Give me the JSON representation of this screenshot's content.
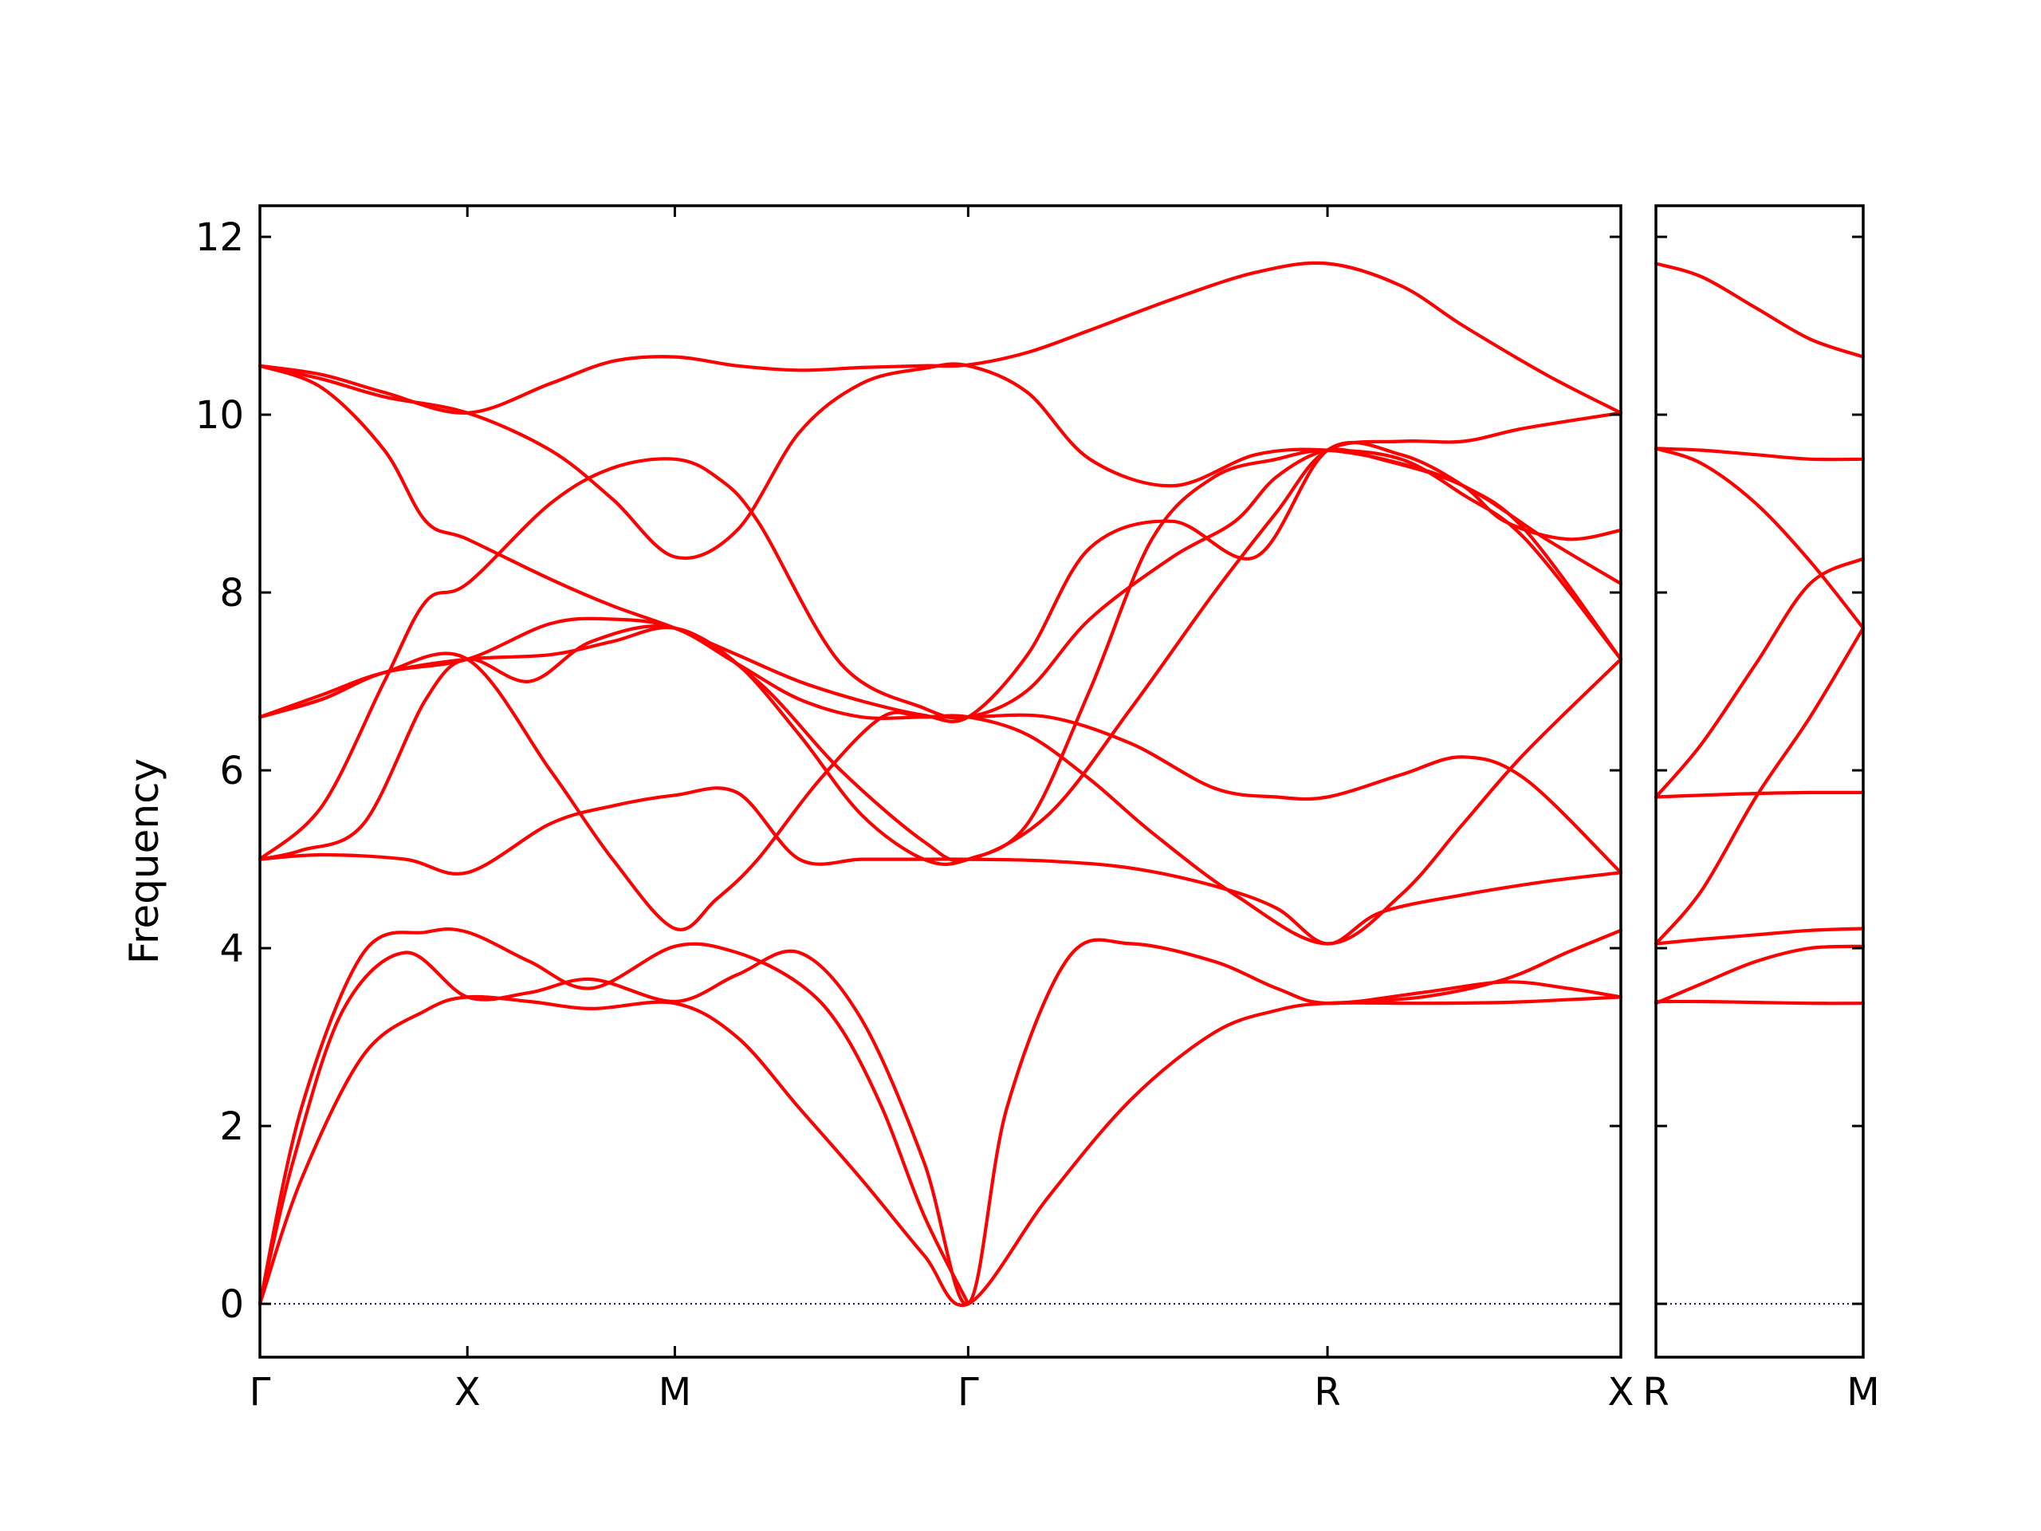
{
  "chart_data": {
    "type": "line",
    "title": "",
    "ylabel": "Frequency",
    "ylim": [
      -0.6,
      12.35
    ],
    "yticks": [
      0,
      2,
      4,
      6,
      8,
      10,
      12
    ],
    "colors": {
      "bands": "#ff0000",
      "zero_line": "#00008b",
      "axes": "#000000"
    },
    "segments": [
      {
        "label": "Γ",
        "x": 0.0
      },
      {
        "label": "X",
        "x": 0.5
      },
      {
        "label": "M",
        "x": 1.0
      },
      {
        "label": "Γ",
        "x": 1.707
      },
      {
        "label": "R",
        "x": 2.573
      },
      {
        "label": "X",
        "x": 3.28
      }
    ],
    "panels": [
      {
        "x_range": [
          0,
          3.28
        ],
        "xtick_positions": [
          0,
          0.5,
          1.0,
          1.707,
          2.573,
          3.28
        ],
        "xtick_labels": [
          "Γ",
          "X",
          "M",
          "Γ",
          "R",
          "X"
        ],
        "bands": [
          {
            "x": [
              0,
              0.1,
              0.25,
              0.4,
              0.5,
              0.65,
              0.8,
              1.0,
              1.15,
              1.3,
              1.45,
              1.6,
              1.707,
              1.9,
              2.1,
              2.3,
              2.45,
              2.573,
              2.8,
              3.0,
              3.15,
              3.28
            ],
            "y": [
              0,
              1.4,
              2.8,
              3.3,
              3.45,
              3.4,
              3.32,
              3.38,
              3.0,
              2.2,
              1.4,
              0.55,
              0,
              1.2,
              2.3,
              3.05,
              3.3,
              3.38,
              3.38,
              3.39,
              3.42,
              3.45
            ]
          },
          {
            "x": [
              0,
              0.08,
              0.2,
              0.35,
              0.5,
              0.65,
              0.8,
              1.0,
              1.15,
              1.3,
              1.45,
              1.6,
              1.707,
              1.8,
              1.95,
              2.1,
              2.3,
              2.45,
              2.573,
              2.8,
              3.0,
              3.15,
              3.28
            ],
            "y": [
              0,
              1.6,
              3.3,
              3.95,
              3.45,
              3.5,
              3.65,
              3.4,
              3.7,
              3.95,
              3.2,
              1.6,
              0,
              2.2,
              3.9,
              4.05,
              3.85,
              3.55,
              3.38,
              3.5,
              3.62,
              3.55,
              3.45
            ]
          },
          {
            "x": [
              0,
              0.1,
              0.25,
              0.4,
              0.5,
              0.65,
              0.8,
              1.0,
              1.15,
              1.3,
              1.4,
              1.5,
              1.6,
              1.707
            ],
            "y": [
              0,
              2.2,
              3.95,
              4.18,
              4.18,
              3.85,
              3.55,
              4.02,
              3.95,
              3.6,
              3.1,
              2.2,
              1.0,
              0
            ]
          },
          {
            "x": [
              2.573,
              2.8,
              3.0,
              3.15,
              3.28
            ],
            "y": [
              3.38,
              3.45,
              3.65,
              3.95,
              4.2
            ]
          },
          {
            "x": [
              0,
              0.15,
              0.35,
              0.5,
              0.7,
              0.85,
              1.0,
              1.15,
              1.3,
              1.45,
              1.6,
              1.707,
              1.9,
              2.1,
              2.3,
              2.45,
              2.573,
              2.7,
              2.9,
              3.1,
              3.28
            ],
            "y": [
              5.0,
              5.05,
              5.0,
              4.85,
              5.4,
              5.6,
              5.72,
              5.75,
              5.0,
              5.0,
              5.0,
              5.0,
              4.98,
              4.9,
              4.7,
              4.45,
              4.05,
              4.4,
              4.6,
              4.75,
              4.85
            ]
          },
          {
            "x": [
              0,
              0.15,
              0.3,
              0.4,
              0.5,
              0.7,
              0.85,
              1.0,
              1.1,
              1.2,
              1.4,
              1.6,
              1.707,
              1.85,
              2.0,
              2.2,
              2.35,
              2.45,
              2.573,
              2.7,
              2.9,
              3.1,
              3.28
            ],
            "y": [
              5.0,
              5.6,
              7.0,
              7.9,
              8.1,
              9.0,
              9.4,
              9.5,
              9.3,
              8.8,
              7.2,
              6.7,
              6.6,
              6.9,
              7.7,
              8.4,
              8.8,
              9.3,
              9.6,
              9.5,
              9.2,
              8.6,
              8.1
            ]
          },
          {
            "x": [
              0,
              0.15,
              0.3,
              0.5,
              0.7,
              0.85,
              1.0,
              1.1,
              1.2,
              1.35,
              1.5,
              1.6,
              1.707,
              1.85,
              2.0,
              2.15,
              2.35,
              2.573,
              2.75,
              2.9,
              3.05,
              3.28
            ],
            "y": [
              6.6,
              6.8,
              7.1,
              7.25,
              6.0,
              5.0,
              4.22,
              4.55,
              5.0,
              5.9,
              6.6,
              6.6,
              6.6,
              6.4,
              5.9,
              5.3,
              4.6,
              4.05,
              4.6,
              5.4,
              6.2,
              7.25
            ]
          },
          {
            "x": [
              0,
              0.15,
              0.3,
              0.5,
              0.7,
              0.85,
              1.0,
              1.15,
              1.3,
              1.45,
              1.6,
              1.707,
              1.85,
              2.0,
              2.15,
              2.3,
              2.45,
              2.573,
              2.75,
              2.9,
              3.05,
              3.28
            ],
            "y": [
              6.6,
              6.85,
              7.1,
              7.25,
              7.3,
              7.45,
              7.6,
              7.2,
              6.4,
              5.5,
              5.0,
              5.0,
              5.4,
              6.9,
              8.6,
              9.3,
              9.5,
              9.6,
              9.5,
              9.1,
              8.6,
              7.25
            ]
          },
          {
            "x": [
              0,
              0.15,
              0.3,
              0.4,
              0.5,
              0.7,
              0.85,
              1.0,
              1.15,
              1.3,
              1.45,
              1.6,
              1.707,
              1.85,
              2.0,
              2.2,
              2.4,
              2.573,
              2.75,
              2.9,
              3.0,
              3.15,
              3.28
            ],
            "y": [
              10.55,
              10.3,
              9.6,
              8.8,
              8.6,
              8.15,
              7.85,
              7.6,
              7.3,
              7.0,
              6.78,
              6.62,
              6.6,
              7.3,
              8.5,
              8.8,
              8.4,
              9.6,
              9.55,
              9.2,
              8.8,
              8.6,
              8.7
            ]
          },
          {
            "x": [
              0,
              0.15,
              0.3,
              0.5,
              0.7,
              0.85,
              1.0,
              1.15,
              1.3,
              1.45,
              1.6,
              1.707,
              1.85,
              2.0,
              2.2,
              2.4,
              2.573,
              2.75,
              2.9,
              3.05,
              3.28
            ],
            "y": [
              10.55,
              10.4,
              10.2,
              10.02,
              9.6,
              9.05,
              8.4,
              8.7,
              9.8,
              10.35,
              10.52,
              10.55,
              10.25,
              9.5,
              9.2,
              9.55,
              9.6,
              9.45,
              9.2,
              8.7,
              7.25
            ]
          },
          {
            "x": [
              0,
              0.15,
              0.3,
              0.5,
              0.7,
              0.85,
              1.0,
              1.15,
              1.3,
              1.45,
              1.6,
              1.707,
              1.85,
              2.0,
              2.2,
              2.4,
              2.573,
              2.75,
              2.9,
              3.1,
              3.28
            ],
            "y": [
              10.55,
              10.45,
              10.25,
              10.02,
              10.35,
              10.6,
              10.65,
              10.55,
              10.5,
              10.53,
              10.55,
              10.56,
              10.7,
              10.95,
              11.3,
              11.6,
              11.7,
              11.45,
              11.0,
              10.45,
              10.02
            ]
          },
          {
            "x": [
              0,
              0.15,
              0.3,
              0.5,
              0.7,
              0.85,
              1.0,
              1.15,
              1.3,
              1.45,
              1.6,
              1.707,
              1.9,
              2.1,
              2.3,
              2.45,
              2.573,
              2.75,
              2.9,
              3.05,
              3.28
            ],
            "y": [
              6.6,
              6.8,
              7.1,
              7.25,
              7.65,
              7.7,
              7.6,
              7.2,
              6.8,
              6.6,
              6.6,
              6.6,
              6.6,
              6.3,
              5.8,
              5.7,
              5.7,
              5.95,
              6.15,
              5.9,
              4.85
            ]
          },
          {
            "x": [
              0,
              0.1,
              0.25,
              0.4,
              0.5,
              0.65,
              0.8,
              1.0,
              1.2,
              1.4,
              1.6,
              1.707,
              1.9,
              2.1,
              2.3,
              2.45,
              2.573,
              2.75,
              2.9,
              3.05,
              3.28
            ],
            "y": [
              5.0,
              5.1,
              5.4,
              6.8,
              7.25,
              7.0,
              7.45,
              7.6,
              7.0,
              6.0,
              5.2,
              5.0,
              5.5,
              6.7,
              8.0,
              8.9,
              9.6,
              9.7,
              9.7,
              9.85,
              10.02
            ]
          }
        ]
      },
      {
        "x_range": [
          2.573,
          3.147
        ],
        "xtick_positions": [
          2.573,
          3.147
        ],
        "xtick_labels": [
          "R",
          "M"
        ],
        "bands": [
          {
            "x": [
              2.573,
              2.7,
              2.85,
              3.0,
              3.147
            ],
            "y": [
              11.7,
              11.55,
              11.2,
              10.85,
              10.65
            ]
          },
          {
            "x": [
              2.573,
              2.7,
              2.85,
              3.0,
              3.147
            ],
            "y": [
              9.62,
              9.6,
              9.55,
              9.5,
              9.5
            ]
          },
          {
            "x": [
              2.573,
              2.7,
              2.85,
              3.0,
              3.147
            ],
            "y": [
              9.62,
              9.45,
              9.0,
              8.35,
              7.6
            ]
          },
          {
            "x": [
              2.573,
              2.7,
              2.85,
              3.0,
              3.147
            ],
            "y": [
              5.7,
              6.3,
              7.2,
              8.1,
              8.38
            ]
          },
          {
            "x": [
              2.573,
              2.7,
              2.85,
              3.0,
              3.147
            ],
            "y": [
              5.7,
              5.72,
              5.74,
              5.75,
              5.75
            ]
          },
          {
            "x": [
              2.573,
              2.7,
              2.85,
              3.0,
              3.147
            ],
            "y": [
              4.05,
              4.65,
              5.7,
              6.6,
              7.6
            ]
          },
          {
            "x": [
              2.573,
              2.7,
              2.85,
              3.0,
              3.147
            ],
            "y": [
              4.05,
              4.1,
              4.15,
              4.2,
              4.22
            ]
          },
          {
            "x": [
              2.573,
              2.7,
              2.85,
              3.0,
              3.147
            ],
            "y": [
              3.38,
              3.6,
              3.85,
              4.0,
              4.02
            ]
          },
          {
            "x": [
              2.573,
              2.7,
              2.85,
              3.0,
              3.147
            ],
            "y": [
              3.4,
              3.4,
              3.39,
              3.38,
              3.38
            ]
          }
        ]
      }
    ]
  }
}
